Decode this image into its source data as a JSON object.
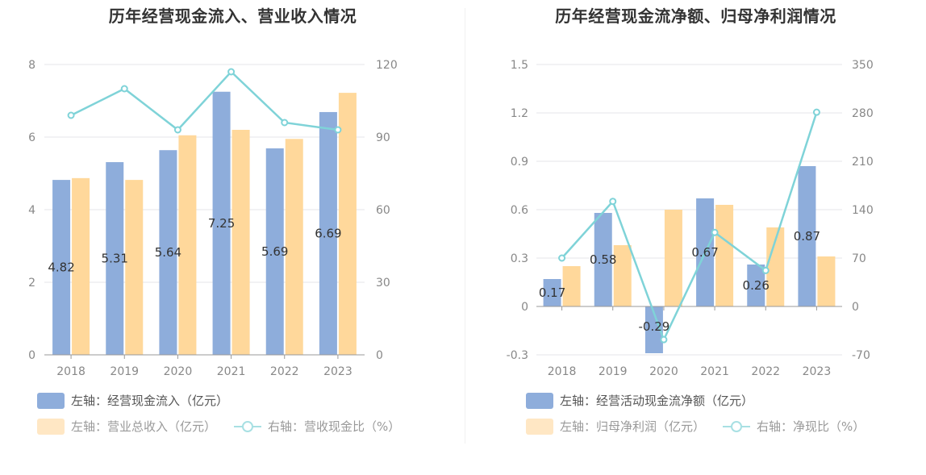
{
  "colors": {
    "bar_blue": "#8EADDB",
    "bar_orange": "#FFD89B",
    "line_teal": "#7FD3D8",
    "grid": "#E4E4E8",
    "axis": "#999999"
  },
  "chart_data": [
    {
      "type": "bar",
      "title": "历年经营现金流入、营业收入情况",
      "categories": [
        "2018",
        "2019",
        "2020",
        "2021",
        "2022",
        "2023"
      ],
      "y_left": {
        "min": 0,
        "max": 8,
        "ticks": [
          "0",
          "2",
          "4",
          "6",
          "8"
        ]
      },
      "y_right": {
        "min": 0,
        "max": 120,
        "ticks": [
          "0",
          "30",
          "60",
          "90",
          "120"
        ]
      },
      "series": [
        {
          "name": "左轴：经营现金流入（亿元）",
          "type": "bar",
          "axis": "left",
          "values": [
            4.82,
            5.31,
            5.64,
            7.25,
            5.69,
            6.69
          ],
          "labels": [
            "4.82",
            "5.31",
            "5.64",
            "7.25",
            "5.69",
            "6.69"
          ]
        },
        {
          "name": "左轴：营业总收入（亿元）",
          "type": "bar",
          "axis": "left",
          "values": [
            4.87,
            4.82,
            6.05,
            6.2,
            5.95,
            7.22
          ]
        },
        {
          "name": "右轴：营收现金比（%）",
          "type": "line",
          "axis": "right",
          "values": [
            99,
            110,
            93,
            117,
            96,
            93
          ]
        }
      ],
      "legend": [
        "左轴：经营现金流入（亿元）",
        "左轴：营业总收入（亿元）",
        "右轴：营收现金比（%）"
      ],
      "legend_position": "bottom-left",
      "grid": true
    },
    {
      "type": "bar",
      "title": "历年经营现金流净额、归母净利润情况",
      "categories": [
        "2018",
        "2019",
        "2020",
        "2021",
        "2022",
        "2023"
      ],
      "y_left": {
        "min": -0.3,
        "max": 1.5,
        "ticks": [
          "-0.3",
          "0",
          "0.3",
          "0.6",
          "0.9",
          "1.2",
          "1.5"
        ]
      },
      "y_right": {
        "min": -70,
        "max": 350,
        "ticks": [
          "-70",
          "0",
          "70",
          "140",
          "210",
          "280",
          "350"
        ]
      },
      "series": [
        {
          "name": "左轴：经营活动现金流净额（亿元）",
          "type": "bar",
          "axis": "left",
          "values": [
            0.17,
            0.58,
            -0.29,
            0.67,
            0.26,
            0.87
          ],
          "labels": [
            "0.17",
            "0.58",
            "-0.29",
            "0.67",
            "0.26",
            "0.87"
          ]
        },
        {
          "name": "左轴：归母净利润（亿元）",
          "type": "bar",
          "axis": "left",
          "values": [
            0.25,
            0.38,
            0.6,
            0.63,
            0.49,
            0.31
          ]
        },
        {
          "name": "右轴：净现比（%）",
          "type": "line",
          "axis": "right",
          "values": [
            70,
            152,
            -48,
            107,
            52,
            281
          ]
        }
      ],
      "legend": [
        "左轴：经营活动现金流净额（亿元）",
        "左轴：归母净利润（亿元）",
        "右轴：净现比（%）"
      ],
      "legend_position": "bottom-left",
      "grid": true
    }
  ]
}
